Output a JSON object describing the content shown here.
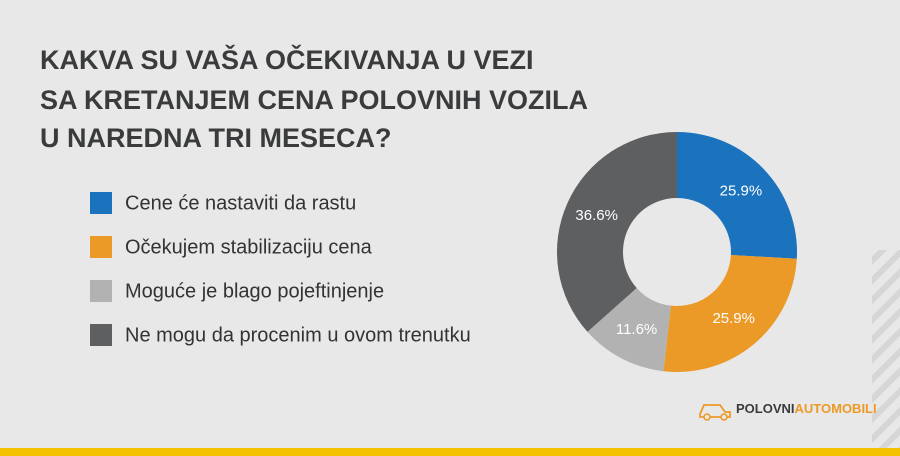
{
  "chart_data": {
    "type": "donut",
    "title": [
      "KAKVA SU VAŠA OČEKIVANJA U VEZI",
      "SA KRETANJEM CENA POLOVNIH VOZILA",
      "U NAREDNA TRI MESECA?"
    ],
    "categories": [
      "Cene će nastaviti da rastu",
      "Očekujem stabilizaciju cena",
      "Moguće je blago pojeftinjenje",
      "Ne mogu da procenim u ovom trenutku"
    ],
    "values": [
      25.9,
      25.9,
      11.6,
      36.6
    ],
    "value_labels": [
      "25.9%",
      "25.9%",
      "11.6%",
      "36.6%"
    ],
    "colors": [
      "#1b72bd",
      "#ec9a27",
      "#b2b2b2",
      "#5e5f61"
    ],
    "legend": "left"
  },
  "logo": [
    "POLOVNI",
    "AUTOMOBILI"
  ]
}
